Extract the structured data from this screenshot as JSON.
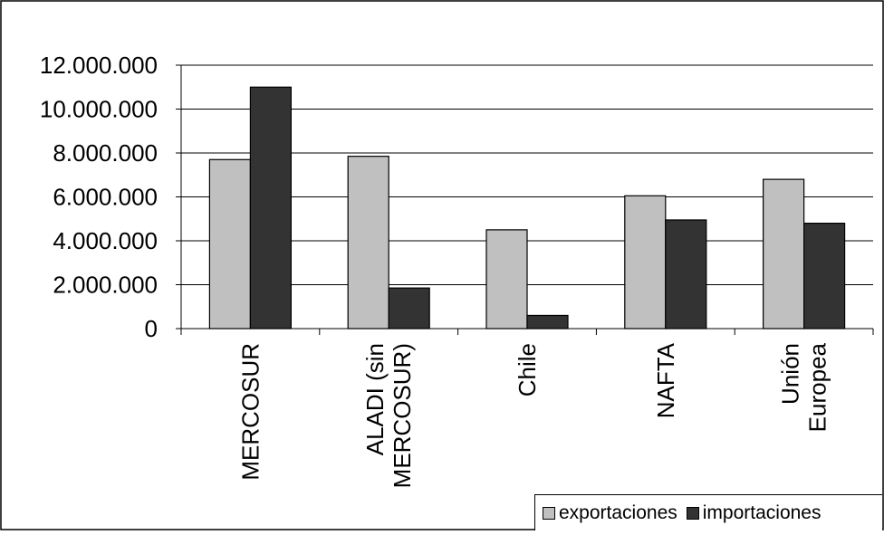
{
  "chart_data": {
    "type": "bar",
    "categories": [
      "MERCOSUR",
      "ALADI (sin MERCOSUR)",
      "Chile",
      "NAFTA",
      "Unión Europea"
    ],
    "category_lines": [
      [
        "MERCOSUR"
      ],
      [
        "ALADI (sin",
        "MERCOSUR)"
      ],
      [
        "Chile"
      ],
      [
        "NAFTA"
      ],
      [
        "Unión",
        "Europea"
      ]
    ],
    "series": [
      {
        "name": "exportaciones",
        "color": "#c0c0c0",
        "values": [
          7700000,
          7850000,
          4500000,
          6050000,
          6800000
        ]
      },
      {
        "name": "importaciones",
        "color": "#333333",
        "values": [
          11000000,
          1850000,
          600000,
          4950000,
          4800000
        ]
      }
    ],
    "ylim": [
      0,
      12000000
    ],
    "yticks": [
      0,
      2000000,
      4000000,
      6000000,
      8000000,
      10000000,
      12000000
    ],
    "ytick_labels": [
      "0",
      "2.000.000",
      "4.000.000",
      "6.000.000",
      "8.000.000",
      "10.000.000",
      "12.000.000"
    ],
    "title": "",
    "xlabel": "",
    "ylabel": "",
    "grid": true,
    "legend_position": "bottom-right"
  }
}
